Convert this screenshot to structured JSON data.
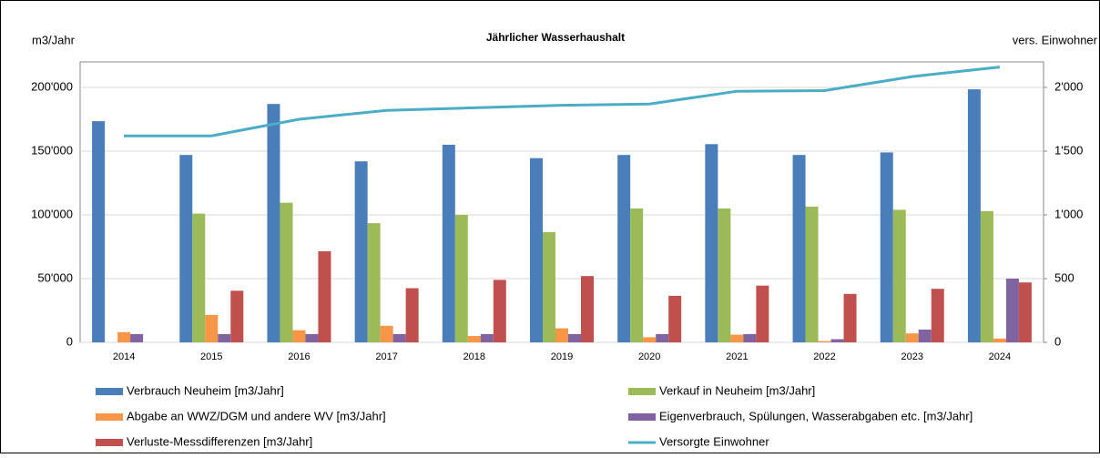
{
  "chart_data": {
    "type": "bar",
    "title": "Jährlicher Wasserhaushalt",
    "y_label": "m3/Jahr",
    "y2_label": "vers. Einwohner",
    "categories": [
      "2014",
      "2015",
      "2016",
      "2017",
      "2018",
      "2019",
      "2020",
      "2021",
      "2022",
      "2023",
      "2024"
    ],
    "series": [
      {
        "name": "Verbrauch Neuheim [m3/Jahr]",
        "color": "#4a7ebb",
        "values": [
          173500,
          147000,
          187000,
          142000,
          155000,
          144500,
          147000,
          155500,
          147000,
          149000,
          198500
        ]
      },
      {
        "name": "Verkauf in Neuheim [m3/Jahr]",
        "color": "#9bbb59",
        "values": [
          null,
          101000,
          109500,
          93500,
          100000,
          86500,
          105000,
          105000,
          106500,
          104000,
          103000
        ]
      },
      {
        "name": "Abgabe an WWZ/DGM und andere WV [m3/Jahr]",
        "color": "#f79646",
        "values": [
          8000,
          21500,
          9500,
          13000,
          5000,
          11000,
          4000,
          6000,
          1000,
          7000,
          3000
        ]
      },
      {
        "name": "Eigenverbrauch, Spülungen, Wasserabgaben etc. [m3/Jahr]",
        "color": "#8064a2",
        "values": [
          6500,
          6500,
          6500,
          6500,
          6500,
          6500,
          6500,
          6500,
          2500,
          10000,
          50000
        ]
      },
      {
        "name": "Verluste-Messdifferenzen [m3/Jahr]",
        "color": "#c0504d",
        "values": [
          null,
          40500,
          71500,
          42500,
          49000,
          52000,
          36500,
          44500,
          38000,
          42000,
          47000
        ]
      },
      {
        "name": "Versorgte Einwohner",
        "color": "#4bacc6",
        "type": "line",
        "axis": "y2",
        "values": [
          1620,
          1620,
          1750,
          1820,
          1840,
          1860,
          1870,
          1970,
          1975,
          2085,
          2160
        ]
      }
    ],
    "ylim": [
      0,
      220000
    ],
    "yticks": [
      0,
      {
        "value": 50000,
        "label": "50'000"
      },
      {
        "value": 100000,
        "label": "100'000"
      },
      {
        "value": 150000,
        "label": "150'000"
      },
      {
        "value": 200000,
        "label": "200'000"
      }
    ],
    "y2lim": [
      0,
      2200
    ],
    "y2ticks": [
      0,
      500,
      {
        "value": 1000,
        "label": "1'000"
      },
      {
        "value": 1500,
        "label": "1'500"
      },
      {
        "value": 2000,
        "label": "2'000"
      }
    ],
    "grid": true
  }
}
